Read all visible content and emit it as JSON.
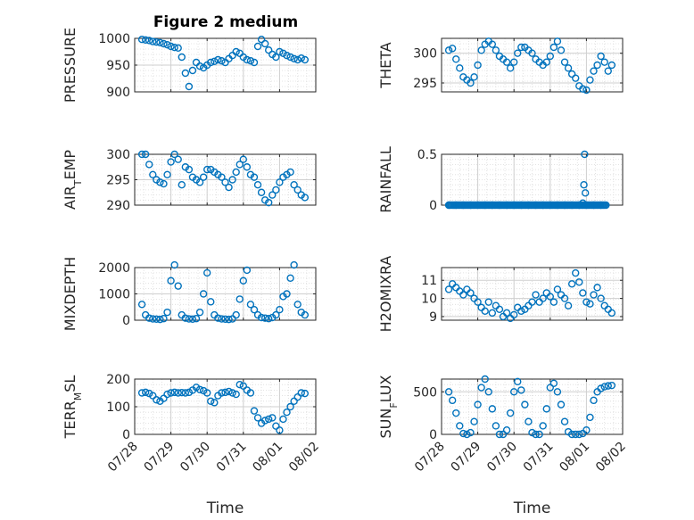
{
  "title": "Figure 2 medium",
  "xlabel": "Time",
  "x_ticks": [
    "07/28",
    "07/29",
    "07/30",
    "07/31",
    "08/01",
    "08/02"
  ],
  "marker_color": "#0072BD",
  "chart_data": [
    {
      "type": "scatter",
      "ylabel": "PRESSURE",
      "ylim": [
        900,
        1000
      ],
      "yticks": [
        "900",
        "950",
        "1000"
      ],
      "x": [
        0.2,
        0.3,
        0.4,
        0.5,
        0.6,
        0.7,
        0.8,
        0.9,
        1.0,
        1.1,
        1.2,
        1.3,
        1.4,
        1.5,
        1.6,
        1.7,
        1.8,
        1.9,
        2.0,
        2.1,
        2.2,
        2.3,
        2.4,
        2.5,
        2.6,
        2.7,
        2.8,
        2.9,
        3.0,
        3.1,
        3.2,
        3.3,
        3.4,
        3.5,
        3.6,
        3.7,
        3.8,
        3.9,
        4.0,
        4.1,
        4.2,
        4.3,
        4.4,
        4.5,
        4.6,
        4.7
      ],
      "y": [
        998,
        997,
        996,
        994,
        993,
        992,
        990,
        988,
        985,
        983,
        982,
        965,
        935,
        910,
        940,
        955,
        948,
        945,
        950,
        955,
        957,
        960,
        958,
        955,
        962,
        968,
        975,
        972,
        965,
        960,
        958,
        955,
        985,
        998,
        990,
        978,
        970,
        965,
        975,
        972,
        968,
        965,
        962,
        960,
        963,
        960
      ]
    },
    {
      "type": "scatter",
      "ylabel": "THETA",
      "ylim": [
        293.5,
        302.5
      ],
      "yticks": [
        "295",
        "300"
      ],
      "x": [
        0.2,
        0.3,
        0.4,
        0.5,
        0.6,
        0.7,
        0.8,
        0.9,
        1.0,
        1.1,
        1.2,
        1.3,
        1.4,
        1.5,
        1.6,
        1.7,
        1.8,
        1.9,
        2.0,
        2.1,
        2.2,
        2.3,
        2.4,
        2.5,
        2.6,
        2.7,
        2.8,
        2.9,
        3.0,
        3.1,
        3.2,
        3.3,
        3.4,
        3.5,
        3.6,
        3.7,
        3.8,
        3.9,
        4.0,
        4.1,
        4.2,
        4.3,
        4.4,
        4.5,
        4.6,
        4.7
      ],
      "y": [
        300.5,
        300.8,
        299,
        297.5,
        296,
        295.5,
        295,
        296,
        298,
        300.5,
        301.5,
        302,
        301.5,
        300.5,
        299.5,
        299,
        298.5,
        297.5,
        298.5,
        300,
        301,
        301,
        300.5,
        300,
        299,
        298.5,
        298,
        298.5,
        299.5,
        301,
        302,
        300.5,
        298.5,
        297.5,
        296.5,
        295.8,
        294.5,
        294,
        293.8,
        295.5,
        297,
        298,
        299.5,
        298.5,
        297,
        298
      ]
    },
    {
      "type": "scatter",
      "ylabel": "AIR_TEMP",
      "ylim": [
        290,
        300
      ],
      "yticks": [
        "290",
        "295",
        "300"
      ],
      "x": [
        0.2,
        0.3,
        0.4,
        0.5,
        0.6,
        0.7,
        0.8,
        0.9,
        1.0,
        1.1,
        1.2,
        1.3,
        1.4,
        1.5,
        1.6,
        1.7,
        1.8,
        1.9,
        2.0,
        2.1,
        2.2,
        2.3,
        2.4,
        2.5,
        2.6,
        2.7,
        2.8,
        2.9,
        3.0,
        3.1,
        3.2,
        3.3,
        3.4,
        3.5,
        3.6,
        3.7,
        3.8,
        3.9,
        4.0,
        4.1,
        4.2,
        4.3,
        4.4,
        4.5,
        4.6,
        4.7
      ],
      "y": [
        300,
        300,
        298,
        296,
        295,
        294.5,
        294.2,
        296,
        298.5,
        300,
        299,
        294,
        297.5,
        297,
        295.5,
        295,
        294.5,
        295.5,
        297,
        297,
        296.5,
        296,
        295.5,
        294.5,
        293.5,
        295,
        296.5,
        298,
        299,
        297.5,
        296,
        295.5,
        294,
        292.5,
        291,
        290.5,
        292,
        293,
        294.5,
        295.5,
        296,
        296.5,
        294,
        293,
        292,
        291.5
      ]
    },
    {
      "type": "scatter",
      "ylabel": "RAINFALL",
      "ylim": [
        0,
        0.5
      ],
      "yticks": [
        "0",
        "0.5"
      ],
      "x": [
        0.2,
        0.4,
        0.6,
        0.8,
        1.0,
        1.2,
        1.4,
        1.6,
        1.8,
        2.0,
        2.2,
        2.4,
        2.6,
        2.8,
        3.0,
        3.2,
        3.4,
        3.6,
        3.8,
        3.9,
        3.93,
        3.95,
        3.97,
        4.0,
        4.2,
        4.4
      ],
      "y": [
        0,
        0,
        0,
        0,
        0,
        0,
        0,
        0,
        0,
        0,
        0,
        0,
        0,
        0,
        0,
        0,
        0,
        0,
        0,
        0.02,
        0.2,
        0.5,
        0.12,
        0,
        0,
        0
      ]
    },
    {
      "type": "scatter",
      "ylabel": "MIXDEPTH",
      "ylim": [
        0,
        2000
      ],
      "yticks": [
        "0",
        "1000",
        "2000"
      ],
      "x": [
        0.2,
        0.3,
        0.4,
        0.5,
        0.6,
        0.7,
        0.8,
        0.9,
        1.0,
        1.1,
        1.2,
        1.3,
        1.4,
        1.5,
        1.6,
        1.7,
        1.8,
        1.9,
        2.0,
        2.1,
        2.2,
        2.3,
        2.4,
        2.5,
        2.6,
        2.7,
        2.8,
        2.9,
        3.0,
        3.1,
        3.2,
        3.3,
        3.4,
        3.5,
        3.6,
        3.7,
        3.8,
        3.9,
        4.0,
        4.1,
        4.2,
        4.3,
        4.4,
        4.5,
        4.6,
        4.7
      ],
      "y": [
        600,
        200,
        80,
        50,
        40,
        30,
        60,
        300,
        1500,
        2100,
        1300,
        200,
        80,
        50,
        40,
        60,
        300,
        1000,
        1800,
        700,
        200,
        80,
        50,
        40,
        30,
        50,
        200,
        800,
        1500,
        1900,
        600,
        400,
        200,
        100,
        80,
        60,
        100,
        200,
        400,
        900,
        1000,
        1600,
        2100,
        600,
        300,
        200
      ]
    },
    {
      "type": "scatter",
      "ylabel": "H2OMIXRA",
      "ylim": [
        8.8,
        11.7
      ],
      "yticks": [
        "9",
        "10",
        "11"
      ],
      "x": [
        0.2,
        0.3,
        0.4,
        0.5,
        0.6,
        0.7,
        0.8,
        0.9,
        1.0,
        1.1,
        1.2,
        1.3,
        1.4,
        1.5,
        1.6,
        1.7,
        1.8,
        1.9,
        2.0,
        2.1,
        2.2,
        2.3,
        2.4,
        2.5,
        2.6,
        2.7,
        2.8,
        2.9,
        3.0,
        3.1,
        3.2,
        3.3,
        3.4,
        3.5,
        3.6,
        3.7,
        3.8,
        3.9,
        4.0,
        4.1,
        4.2,
        4.3,
        4.4,
        4.5,
        4.6,
        4.7
      ],
      "y": [
        10.5,
        10.8,
        10.6,
        10.4,
        10.2,
        10.5,
        10.3,
        10.0,
        9.8,
        9.5,
        9.3,
        9.8,
        9.2,
        9.6,
        9.4,
        9.0,
        9.2,
        8.9,
        9.1,
        9.5,
        9.3,
        9.4,
        9.6,
        9.8,
        10.2,
        9.8,
        10.0,
        10.3,
        10.1,
        9.8,
        10.5,
        10.2,
        10.0,
        9.6,
        10.8,
        11.4,
        10.9,
        10.3,
        9.8,
        9.7,
        10.2,
        10.6,
        10.0,
        9.6,
        9.4,
        9.2
      ]
    },
    {
      "type": "scatter",
      "ylabel": "TERR_MSL",
      "ylim": [
        0,
        200
      ],
      "yticks": [
        "0",
        "100",
        "200"
      ],
      "x": [
        0.2,
        0.3,
        0.4,
        0.5,
        0.6,
        0.7,
        0.8,
        0.9,
        1.0,
        1.1,
        1.2,
        1.3,
        1.4,
        1.5,
        1.6,
        1.7,
        1.8,
        1.9,
        2.0,
        2.1,
        2.2,
        2.3,
        2.4,
        2.5,
        2.6,
        2.7,
        2.8,
        2.9,
        3.0,
        3.1,
        3.2,
        3.3,
        3.4,
        3.5,
        3.6,
        3.7,
        3.8,
        3.9,
        4.0,
        4.1,
        4.2,
        4.3,
        4.4,
        4.5,
        4.6,
        4.7
      ],
      "y": [
        150,
        152,
        148,
        140,
        125,
        120,
        130,
        145,
        150,
        152,
        150,
        151,
        150,
        152,
        160,
        170,
        162,
        158,
        150,
        120,
        115,
        140,
        150,
        152,
        155,
        150,
        145,
        180,
        175,
        160,
        150,
        85,
        60,
        40,
        50,
        55,
        60,
        30,
        15,
        55,
        80,
        100,
        120,
        135,
        150,
        148
      ]
    },
    {
      "type": "scatter",
      "ylabel": "SUN_FLUX",
      "ylim": [
        0,
        650
      ],
      "yticks": [
        "0",
        "500"
      ],
      "x": [
        0.2,
        0.3,
        0.4,
        0.5,
        0.6,
        0.7,
        0.8,
        0.9,
        1.0,
        1.1,
        1.2,
        1.3,
        1.4,
        1.5,
        1.6,
        1.7,
        1.8,
        1.9,
        2.0,
        2.1,
        2.2,
        2.3,
        2.4,
        2.5,
        2.6,
        2.7,
        2.8,
        2.9,
        3.0,
        3.1,
        3.2,
        3.3,
        3.4,
        3.5,
        3.6,
        3.7,
        3.8,
        3.9,
        4.0,
        4.1,
        4.2,
        4.3,
        4.4,
        4.5,
        4.6,
        4.7
      ],
      "y": [
        500,
        400,
        250,
        100,
        10,
        0,
        20,
        150,
        350,
        550,
        650,
        500,
        300,
        100,
        0,
        0,
        50,
        250,
        500,
        620,
        520,
        350,
        150,
        20,
        0,
        0,
        100,
        300,
        550,
        600,
        500,
        350,
        150,
        30,
        0,
        0,
        0,
        10,
        50,
        200,
        400,
        500,
        540,
        560,
        570,
        575
      ]
    }
  ]
}
